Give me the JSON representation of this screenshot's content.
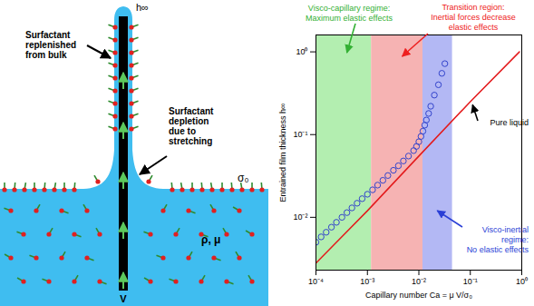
{
  "diagram": {
    "top_label": "h∞",
    "annotations": [
      "Surfactant\nreplenished\nfrom bulk",
      "Surfactant\ndepletion\ndue to\nstretching"
    ],
    "surface_tension": "σ₀",
    "liquid": "ρ, μ",
    "velocity": "V"
  },
  "chart_data": {
    "type": "line",
    "x_label": "Capillary number Ca = μ V/σ₀",
    "y_label": "Entrained film thickness h∞",
    "log": true,
    "grid": false,
    "xlim": [
      0.0001,
      1
    ],
    "ylim": [
      0.0023,
      1.6
    ],
    "xticks": [
      {
        "value": 0.0001,
        "label": "10⁻⁴"
      },
      {
        "value": 0.001,
        "label": "10⁻³"
      },
      {
        "value": 0.01,
        "label": "10⁻²"
      },
      {
        "value": 0.1,
        "label": "10⁻¹"
      },
      {
        "value": 1,
        "label": "10⁰"
      }
    ],
    "yticks": [
      {
        "value": 0.01,
        "label": "10⁻²"
      },
      {
        "value": 0.1,
        "label": "10⁻¹"
      },
      {
        "value": 1,
        "label": "10⁰"
      }
    ],
    "regions": [
      {
        "label": "Visco-capillary regime:\nMaximum elastic effects",
        "from": 0.0001,
        "to": 0.0012,
        "color": "#b3eeb0"
      },
      {
        "label": "Transition region:\nInertial forces decrease\nelastic effects",
        "from": 0.0012,
        "to": 0.012,
        "color": "#f6b3b3"
      },
      {
        "label": "Visco-inertial\nregime:\nNo elastic effects",
        "from": 0.012,
        "to": 0.045,
        "color": "#b3b8f4"
      }
    ],
    "series": [
      {
        "name": "Pure liquid",
        "type": "line",
        "color": "#e31a1c",
        "x": [
          0.0001,
          0.001,
          0.01,
          0.1,
          0.9
        ],
        "values": [
          0.0028,
          0.012,
          0.055,
          0.25,
          1.0
        ]
      },
      {
        "type": "scatter",
        "marker": "open_circle",
        "color": "#3344cc",
        "x": [
          0.0001,
          0.000126,
          0.000158,
          0.0002,
          0.00025,
          0.00032,
          0.0004,
          0.0005,
          0.00063,
          0.00079,
          0.001,
          0.00126,
          0.00158,
          0.002,
          0.0025,
          0.0032,
          0.004,
          0.005,
          0.0063,
          0.0079,
          0.009,
          0.01,
          0.011,
          0.012,
          0.013,
          0.014,
          0.0155,
          0.017,
          0.02,
          0.024,
          0.028,
          0.032
        ],
        "values": [
          0.005,
          0.0058,
          0.0066,
          0.0076,
          0.0087,
          0.01,
          0.0114,
          0.013,
          0.0148,
          0.0168,
          0.019,
          0.0215,
          0.0245,
          0.028,
          0.032,
          0.037,
          0.042,
          0.048,
          0.055,
          0.064,
          0.072,
          0.082,
          0.095,
          0.11,
          0.13,
          0.15,
          0.18,
          0.22,
          0.3,
          0.4,
          0.55,
          0.72
        ]
      }
    ]
  }
}
